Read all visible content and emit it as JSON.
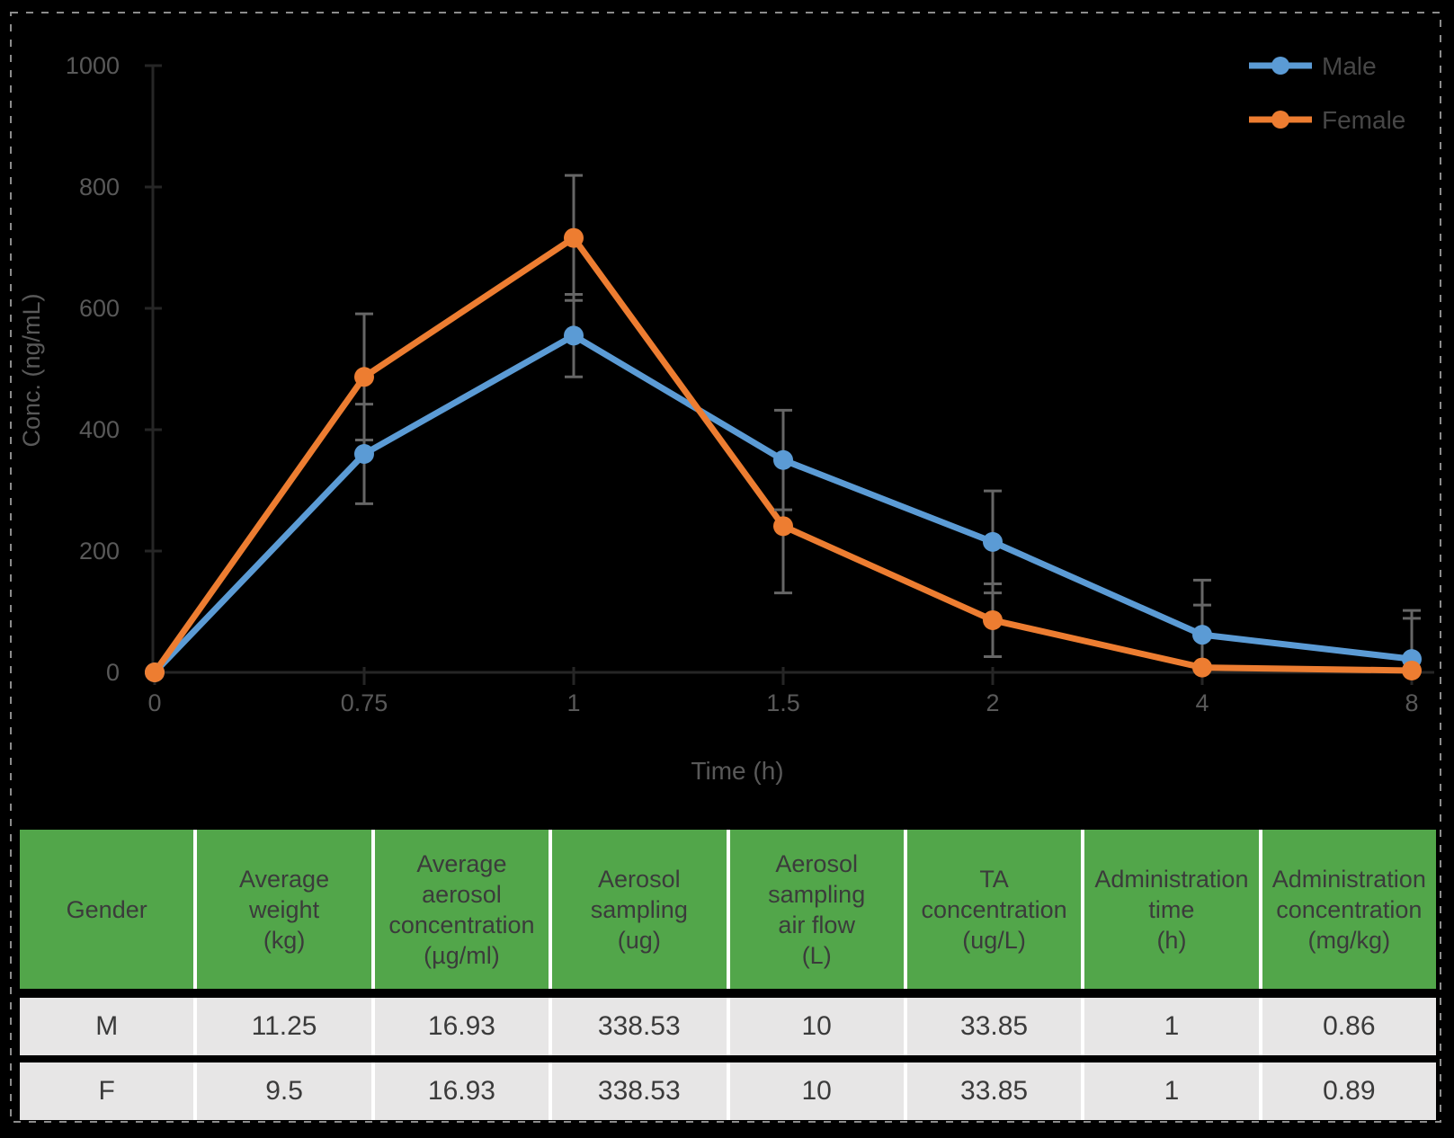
{
  "chart_data": {
    "type": "line",
    "title": "",
    "xlabel": "Time (h)",
    "ylabel": "Conc. (ng/mL)",
    "x_categories": [
      "0",
      "0.75",
      "1",
      "1.5",
      "2",
      "4",
      "8"
    ],
    "y_ticks": [
      0,
      200,
      400,
      600,
      800,
      1000
    ],
    "ylim": [
      0,
      1000
    ],
    "grid": false,
    "legend_position": "top-right",
    "error_bar_color": "#666666",
    "axis_line_color": "#262626",
    "tick_label_color": "#595959",
    "legend_text_color": "#474747",
    "series": [
      {
        "name": "Male",
        "color": "#5B9BD5",
        "values": [
          0,
          360,
          555,
          350,
          215,
          62,
          22
        ],
        "errors": [
          null,
          82,
          68,
          82,
          84,
          90,
          80
        ]
      },
      {
        "name": "Female",
        "color": "#ED7D31",
        "values": [
          0,
          487,
          716,
          241,
          86,
          8,
          3
        ],
        "errors": [
          null,
          104,
          103,
          110,
          60,
          103,
          86
        ]
      }
    ]
  },
  "table": {
    "header_bg": "#52A64A",
    "row_bg": "#E7E6E6",
    "separator_color": "#ffffff",
    "columns": [
      {
        "lines": [
          "Gender"
        ]
      },
      {
        "lines": [
          "Average",
          "weight",
          "(kg)"
        ]
      },
      {
        "lines": [
          "Average",
          "aerosol",
          "concentration",
          "(µg/ml)"
        ]
      },
      {
        "lines": [
          "Aerosol",
          "sampling",
          "(ug)"
        ]
      },
      {
        "lines": [
          "Aerosol",
          "sampling",
          "air flow",
          "(L)"
        ]
      },
      {
        "lines": [
          "TA",
          "concentration",
          "(ug/L)"
        ]
      },
      {
        "lines": [
          "Administration",
          "time",
          "(h)"
        ]
      },
      {
        "lines": [
          "Administration",
          "concentration",
          "(mg/kg)"
        ]
      }
    ],
    "rows": [
      {
        "cells": [
          "M",
          "11.25",
          "16.93",
          "338.53",
          "10",
          "33.85",
          "1",
          "0.86"
        ]
      },
      {
        "cells": [
          "F",
          "9.5",
          "16.93",
          "338.53",
          "10",
          "33.85",
          "1",
          "0.89"
        ]
      }
    ]
  }
}
